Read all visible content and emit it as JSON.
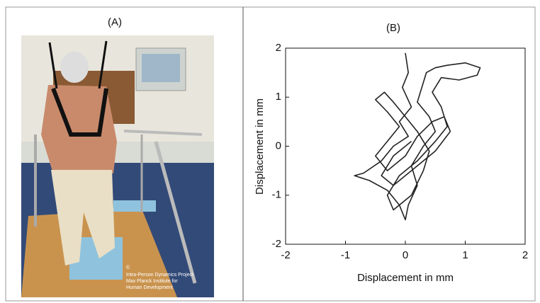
{
  "panels": {
    "a_label": "(A)",
    "photo_caption": [
      "©",
      "Intra-Person Dynamics Project",
      "Max Planck Institute for",
      "Human Development"
    ]
  },
  "chart_data": {
    "type": "line",
    "title": "(B)",
    "x_label": "Displacement in mm",
    "y_label": "Displacement in mm",
    "xlim": [
      -2,
      2
    ],
    "ylim": [
      -2,
      2
    ],
    "xticks": [
      -2,
      -1,
      0,
      1,
      2
    ],
    "yticks": [
      -2,
      -1,
      0,
      1,
      2
    ],
    "x": [
      0,
      0.05,
      -0.05,
      0.1,
      -0.1,
      0.05,
      -0.2,
      -0.4,
      -0.7,
      -0.85,
      -0.6,
      -0.3,
      -0.1,
      0.0,
      0.05,
      0.2,
      0.1,
      0.3,
      0.5,
      0.4,
      0.2,
      0.3,
      0.35,
      0.5,
      0.7,
      1.0,
      1.25,
      1.2,
      0.9,
      0.6,
      0.45,
      0.6,
      0.7,
      0.5,
      0.2,
      -0.1,
      -0.3,
      -0.2,
      0.1,
      0.3,
      0.4,
      0.2,
      0.0,
      -0.2,
      -0.35,
      -0.5,
      -0.3,
      -0.1,
      -0.3,
      -0.5,
      -0.3,
      0.0,
      0.2,
      0.45,
      0.65,
      0.75,
      0.5,
      0.1,
      -0.2,
      -0.4,
      -0.2,
      0.1
    ],
    "series": [
      {
        "color": "#222222",
        "values": [
          1.9,
          1.5,
          1.2,
          0.8,
          0.5,
          0.2,
          0.0,
          -0.3,
          -0.55,
          -0.6,
          -0.7,
          -0.9,
          -1.2,
          -1.5,
          -1.2,
          -0.8,
          -0.4,
          0.0,
          0.3,
          0.6,
          0.9,
          1.3,
          1.5,
          1.6,
          1.65,
          1.7,
          1.6,
          1.45,
          1.35,
          1.4,
          1.1,
          0.8,
          0.4,
          0.1,
          -0.3,
          -0.6,
          -1.0,
          -1.3,
          -1.0,
          -0.5,
          -0.1,
          0.3,
          0.6,
          0.9,
          1.1,
          0.95,
          0.7,
          0.4,
          0.1,
          -0.2,
          -0.5,
          -0.2,
          0.2,
          0.5,
          0.6,
          0.3,
          -0.1,
          -0.5,
          -0.8,
          -0.6,
          -0.2,
          0.1
        ]
      }
    ]
  }
}
